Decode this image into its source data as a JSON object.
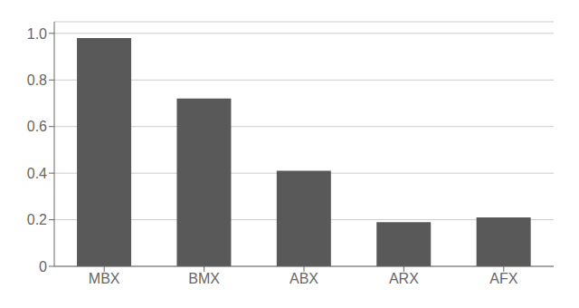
{
  "chart_data": {
    "type": "bar",
    "categories": [
      "MBX",
      "BMX",
      "ABX",
      "ARX",
      "AFX"
    ],
    "values": [
      0.98,
      0.72,
      0.41,
      0.19,
      0.21
    ],
    "color": "#595959",
    "ylim": [
      0,
      1.05
    ],
    "yticks": [
      0,
      0.2,
      0.4,
      0.6,
      0.8,
      {
        "value": 1,
        "label": "1.0"
      }
    ],
    "grid": true
  }
}
